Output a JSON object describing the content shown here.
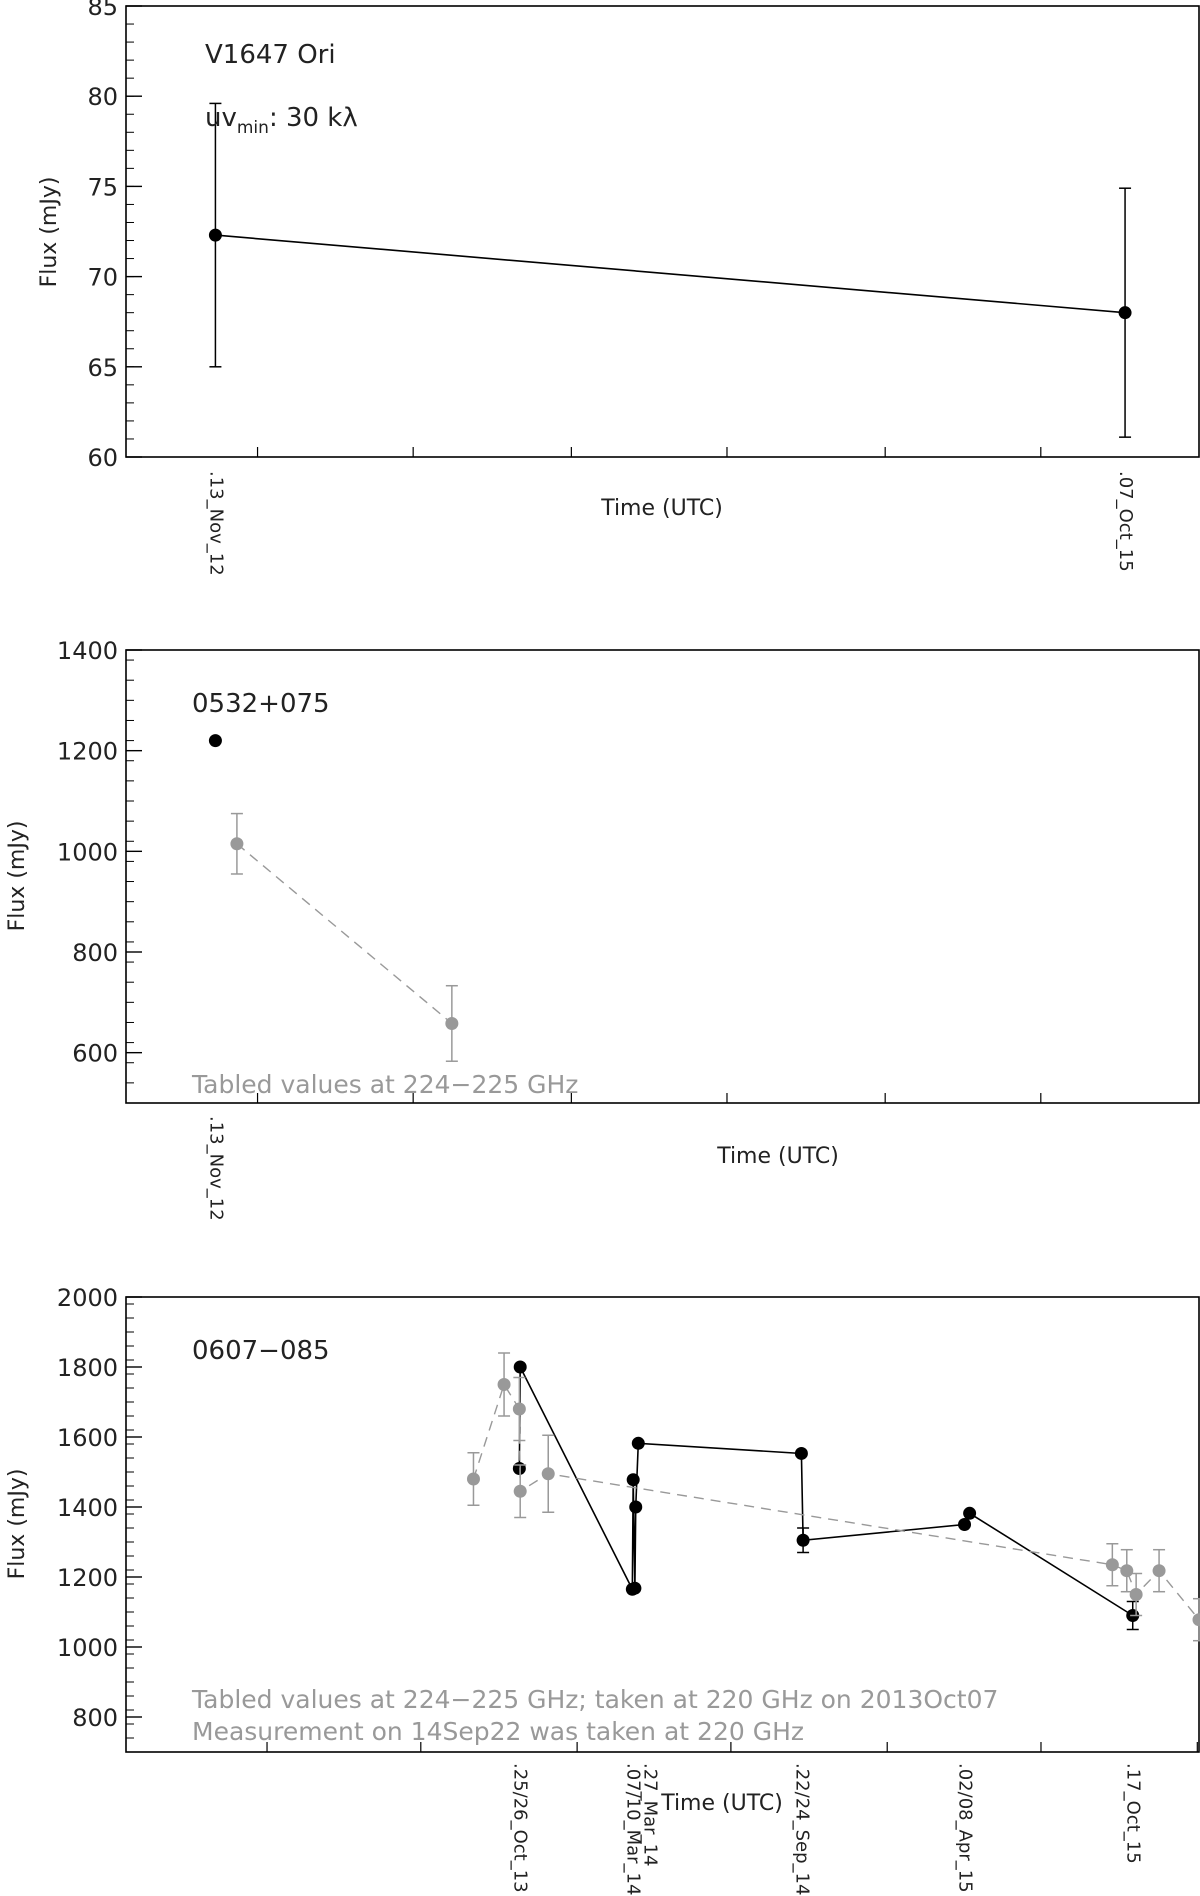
{
  "chart_data": [
    {
      "type": "line",
      "title": "V1647 Ori",
      "annotation": {
        "base": "uv",
        "subscript": "min",
        "rest": ": 30 kλ"
      },
      "xlabel": "Time (UTC)",
      "ylabel": "Flux (mJy)",
      "ylim": [
        60,
        85
      ],
      "yticks": [
        60,
        65,
        70,
        75,
        80,
        85
      ],
      "date_labels": [
        "13_Nov_12",
        "07_Oct_15"
      ],
      "colors": {
        "measured": "#000000",
        "tabled": "#999999"
      },
      "series": [
        {
          "points": [
            {
              "x": "2012-11-13",
              "y": 72.3,
              "err": 7.3
            },
            {
              "x": "2015-10-07",
              "y": 68.0,
              "err": 6.9
            }
          ]
        }
      ]
    },
    {
      "type": "line",
      "title": "0532+075",
      "xlabel": "Time (UTC)",
      "ylabel": "Flux (mJy)",
      "ylim": [
        500,
        1400
      ],
      "yticks": [
        600,
        800,
        1000,
        1200,
        1400
      ],
      "date_labels": [
        "13_Nov_12"
      ],
      "notes": [
        "Tabled values at 224−225 GHz"
      ],
      "colors": {
        "measured": "#000000",
        "tabled": "#999999"
      },
      "series": [
        {
          "points": [
            {
              "x": "2012-11-13",
              "y": 1220
            }
          ]
        },
        {
          "points": [
            {
              "x": "2012-12-08",
              "y": 1015,
              "err": 60
            },
            {
              "x": "2013-08-15",
              "y": 658,
              "err": 75
            }
          ]
        }
      ]
    },
    {
      "type": "line",
      "title": "0607−085",
      "xlabel": "Time (UTC)",
      "ylabel": "Flux (mJy)",
      "ylim": [
        700,
        2000
      ],
      "yticks": [
        800,
        1000,
        1200,
        1400,
        1600,
        1800,
        2000
      ],
      "date_labels": [
        "25/26_Oct_13",
        "07/10_Mar_14",
        "27_Mar_14",
        "22/24_Sep_14",
        "02/08_Apr_15",
        "17_Oct_15"
      ],
      "notes": [
        "Tabled values at 224−225 GHz; taken at 220 GHz on 2013Oct07",
        "Measurement on 14Sep22 was taken at 220 GHz"
      ],
      "colors": {
        "measured": "#000000",
        "tabled": "#999999"
      },
      "series": [
        {
          "points": [
            {
              "x": "2013-10-25",
              "y": 1510
            },
            {
              "x": "2013-10-26",
              "y": 1800
            },
            {
              "x": "2014-03-07",
              "y": 1165
            },
            {
              "x": "2014-03-08",
              "y": 1478
            },
            {
              "x": "2014-03-10",
              "y": 1168
            },
            {
              "x": "2014-03-11",
              "y": 1400
            },
            {
              "x": "2014-03-14",
              "y": 1582
            },
            {
              "x": "2014-09-22",
              "y": 1553
            },
            {
              "x": "2014-09-24",
              "y": 1305,
              "err": 35
            },
            {
              "x": "2015-04-02",
              "y": 1350
            },
            {
              "x": "2015-04-08",
              "y": 1382
            },
            {
              "x": "2015-10-17",
              "y": 1090,
              "err": 40
            }
          ]
        },
        {
          "points": [
            {
              "x": "2013-09-01",
              "y": 1480,
              "err": 75
            },
            {
              "x": "2013-10-07",
              "y": 1750,
              "err": 90
            },
            {
              "x": "2013-10-25",
              "y": 1680,
              "err": 90
            },
            {
              "x": "2013-10-26",
              "y": 1445,
              "err": 75
            },
            {
              "x": "2013-11-28",
              "y": 1495,
              "err": 110
            },
            {
              "x": "2015-09-23",
              "y": 1235,
              "err": 60
            },
            {
              "x": "2015-10-10",
              "y": 1218,
              "err": 60
            },
            {
              "x": "2015-10-21",
              "y": 1150,
              "err": 60
            },
            {
              "x": "2015-11-17",
              "y": 1218,
              "err": 60
            },
            {
              "x": "2016-01-03",
              "y": 1078,
              "err": 60
            }
          ]
        }
      ]
    }
  ]
}
